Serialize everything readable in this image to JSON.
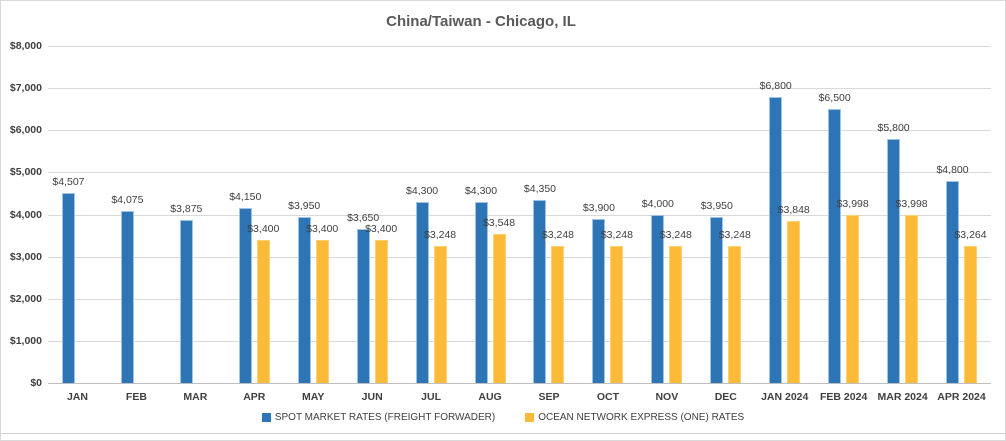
{
  "chart_data": {
    "type": "bar",
    "title": "China/Taiwan - Chicago, IL",
    "categories": [
      "JAN",
      "FEB",
      "MAR",
      "APR",
      "MAY",
      "JUN",
      "JUL",
      "AUG",
      "SEP",
      "OCT",
      "NOV",
      "DEC",
      "JAN 2024",
      "FEB 2024",
      "MAR 2024",
      "APR 2024"
    ],
    "series": [
      {
        "name": "SPOT MARKET RATES (FREIGHT FORWADER)",
        "color": "#2E75B6",
        "border_color": "#9DC3E6",
        "values": [
          4507,
          4075,
          3875,
          4150,
          3950,
          3650,
          4300,
          4300,
          4350,
          3900,
          4000,
          3950,
          6800,
          6500,
          5800,
          4800
        ]
      },
      {
        "name": "OCEAN NETWORK EXPRESS (ONE) RATES",
        "color": "#FBBB39",
        "border_color": "#FDD171",
        "values": [
          null,
          null,
          null,
          3400,
          3400,
          3400,
          3248,
          3548,
          3248,
          3248,
          3248,
          3248,
          3848,
          3998,
          3998,
          3264
        ]
      }
    ],
    "data_labels": [
      "$4,507",
      "$4,075",
      "$3,875",
      "$4,150",
      "$3,950",
      "$3,650",
      "$4,300",
      "$4,300",
      "$4,350",
      "$3,900",
      "$4,000",
      "$3,950",
      "$6,800",
      "$6,500",
      "$5,800",
      "$4,800",
      "$3,400",
      "$3,400",
      "$3,400",
      "$3,248",
      "$3,548",
      "$3,248",
      "$3,248",
      "$3,248",
      "$3,248",
      "$3,848",
      "$3,998",
      "$3,998",
      "$3,264"
    ],
    "ylim": [
      0,
      8000
    ],
    "ytick_step": 1000,
    "ytick_labels": [
      "$0",
      "$1,000",
      "$2,000",
      "$3,000",
      "$4,000",
      "$5,000",
      "$6,000",
      "$7,000",
      "$8,000"
    ],
    "grid": true,
    "legend_position": "bottom",
    "colors": {
      "gridline": "#D9D9D9",
      "axis_line": "#BFBFBF",
      "text": "#404040",
      "title": "#595959",
      "frame_border": "#D9D9D9"
    }
  }
}
